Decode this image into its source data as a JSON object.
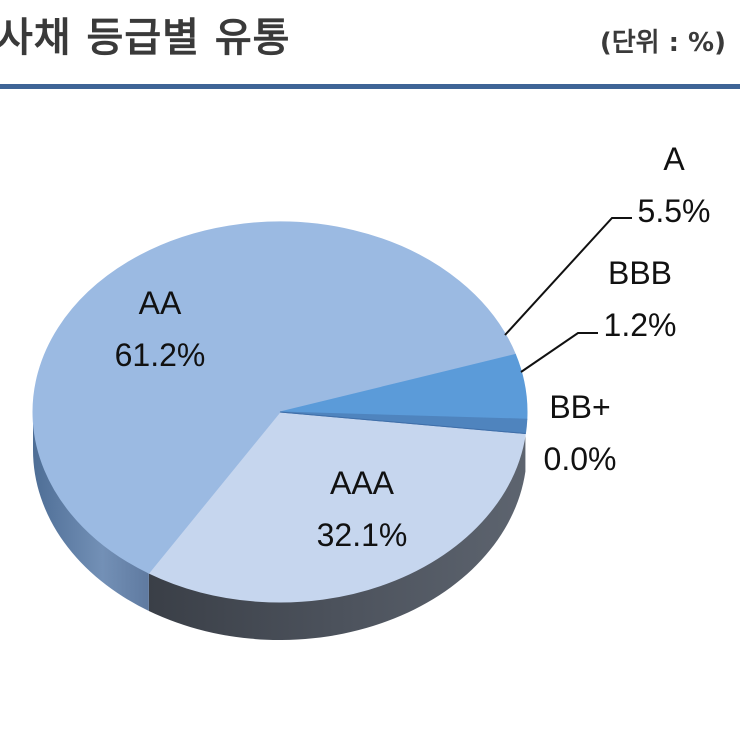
{
  "header": {
    "title": "사채 등급별 유통",
    "unit": "(단위 : %)"
  },
  "chart_data": {
    "type": "pie",
    "title": "사채 등급별 유통",
    "unit": "(단위 : %)",
    "three_d": true,
    "slices": [
      {
        "label": "AAA",
        "value": 32.1,
        "value_label": "32.1%",
        "color": "#c6d6ee"
      },
      {
        "label": "AA",
        "value": 61.2,
        "value_label": "61.2%",
        "color": "#9bbae2"
      },
      {
        "label": "A",
        "value": 5.5,
        "value_label": "5.5%",
        "color": "#5b9bd9"
      },
      {
        "label": "BBB",
        "value": 1.2,
        "value_label": "1.2%",
        "color": "#4f84be"
      },
      {
        "label": "BB+",
        "value": 0.0,
        "value_label": "0.0%",
        "color": "#3f6ea8"
      }
    ]
  }
}
